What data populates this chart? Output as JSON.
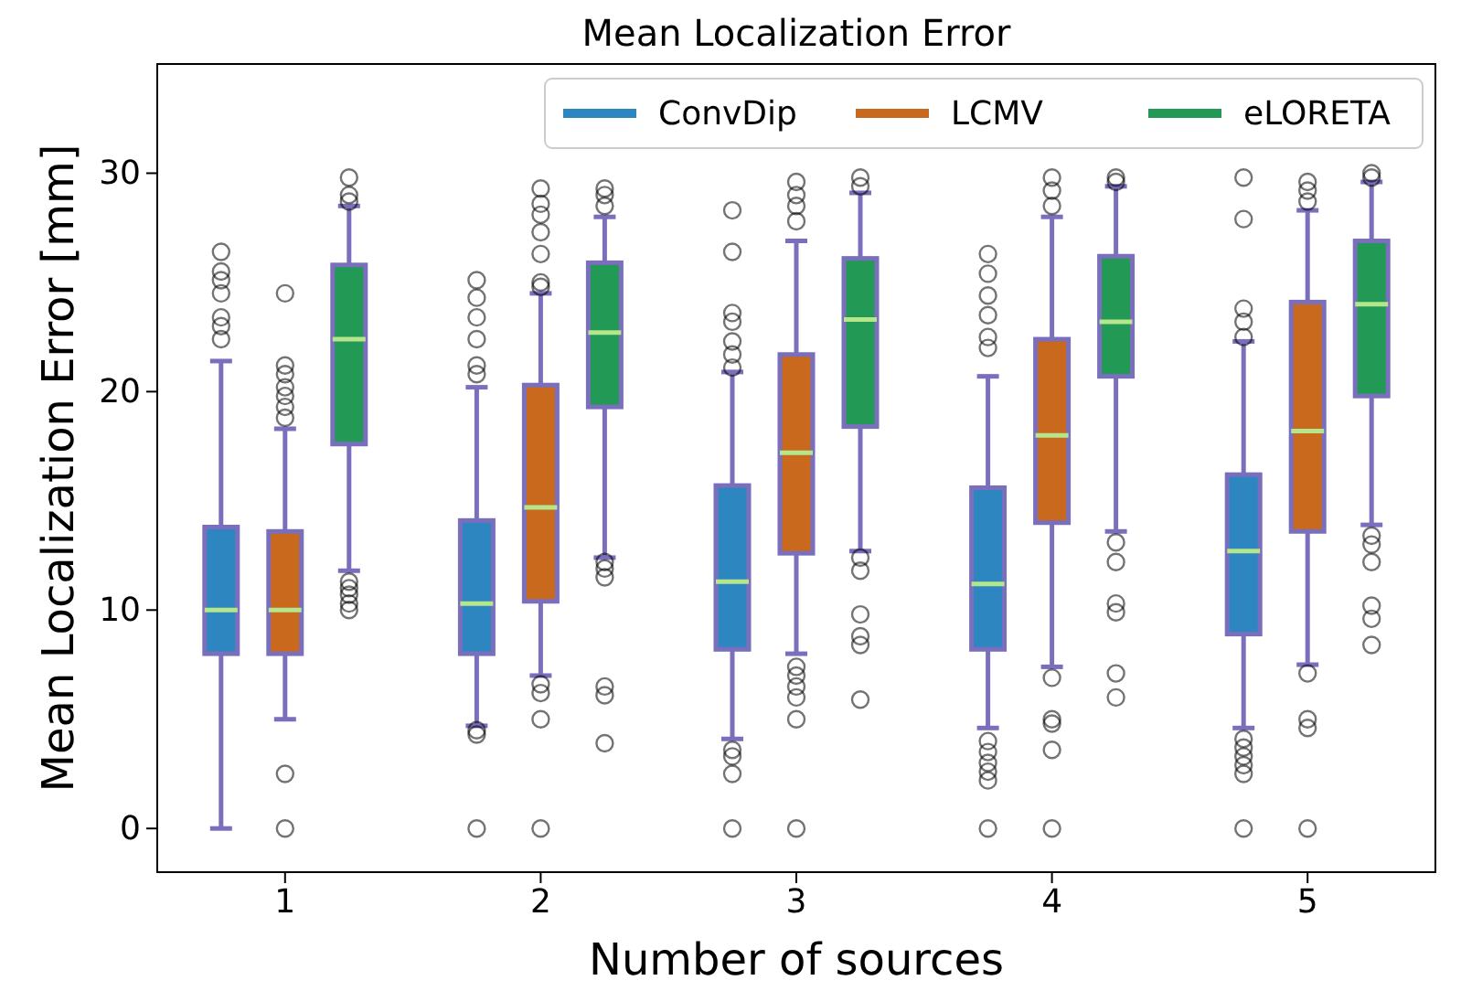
{
  "chart_data": {
    "type": "box",
    "title": "Mean Localization Error",
    "xlabel": "Number of sources",
    "ylabel": "Mean Localization Error [mm]",
    "categories": [
      "1",
      "2",
      "3",
      "4",
      "5"
    ],
    "ylim": [
      -2,
      35
    ],
    "yticks": [
      0,
      10,
      20,
      30
    ],
    "grid": false,
    "legend": "top right",
    "series": [
      {
        "name": "ConvDip",
        "color": "#2e86c1",
        "boxes": [
          {
            "low": 0,
            "q1": 8,
            "median": 10,
            "q3": 13.8,
            "high": 21.4,
            "outliers": [
              22.4,
              23,
              23.4,
              24.5,
              25.1,
              25.5,
              26.4
            ]
          },
          {
            "low": 4.7,
            "q1": 8,
            "median": 10.3,
            "q3": 14.1,
            "high": 20.2,
            "outliers": [
              0,
              4.3,
              4.5,
              20.8,
              21.2,
              22.4,
              23.4,
              24.3,
              25.1
            ]
          },
          {
            "low": 4.1,
            "q1": 8.2,
            "median": 11.3,
            "q3": 15.7,
            "high": 20.9,
            "outliers": [
              0,
              2.5,
              3.3,
              3.6,
              21.1,
              21.7,
              22.3,
              23.2,
              23.6,
              26.4,
              28.3
            ]
          },
          {
            "low": 4.6,
            "q1": 8.2,
            "median": 11.2,
            "q3": 15.6,
            "high": 20.7,
            "outliers": [
              0,
              2.2,
              2.6,
              3,
              3.5,
              4,
              22,
              22.5,
              23.5,
              24.4,
              25.4,
              26.3
            ]
          },
          {
            "low": 4.6,
            "q1": 8.9,
            "median": 12.7,
            "q3": 16.2,
            "high": 22.3,
            "outliers": [
              0,
              2.5,
              2.9,
              3.3,
              3.7,
              4.1,
              22.5,
              23.2,
              23.8,
              27.9,
              29.8
            ]
          }
        ]
      },
      {
        "name": "LCMV",
        "color": "#c9691e",
        "boxes": [
          {
            "low": 5,
            "q1": 8,
            "median": 10,
            "q3": 13.6,
            "high": 18.3,
            "outliers": [
              0,
              2.5,
              18.8,
              19.3,
              19.8,
              20.2,
              20.8,
              21.2,
              24.5
            ]
          },
          {
            "low": 7,
            "q1": 10.4,
            "median": 14.7,
            "q3": 20.3,
            "high": 24.5,
            "outliers": [
              0,
              5,
              6.2,
              6.6,
              24.8,
              25,
              26.3,
              27.3,
              28.1,
              28.6,
              29.3
            ]
          },
          {
            "low": 8,
            "q1": 12.6,
            "median": 17.2,
            "q3": 21.7,
            "high": 26.9,
            "outliers": [
              0,
              5,
              6,
              6.5,
              7,
              7.4,
              27.8,
              28.5,
              29,
              29.6
            ]
          },
          {
            "low": 7.4,
            "q1": 14,
            "median": 18,
            "q3": 22.4,
            "high": 28,
            "outliers": [
              0,
              3.6,
              4.8,
              5,
              6.9,
              28.5,
              29.2,
              29.8
            ]
          },
          {
            "low": 7.5,
            "q1": 13.6,
            "median": 18.2,
            "q3": 24.1,
            "high": 28.3,
            "outliers": [
              0,
              4.6,
              5,
              7.1,
              28.7,
              29.2,
              29.6
            ]
          }
        ]
      },
      {
        "name": "eLORETA",
        "color": "#229955",
        "boxes": [
          {
            "low": 11.8,
            "q1": 17.6,
            "median": 22.4,
            "q3": 25.8,
            "high": 28.5,
            "outliers": [
              10,
              10.3,
              10.7,
              11,
              11.3,
              28.7,
              29,
              29.8
            ]
          },
          {
            "low": 12.4,
            "q1": 19.3,
            "median": 22.7,
            "q3": 25.9,
            "high": 28,
            "outliers": [
              3.9,
              6.1,
              6.5,
              11.5,
              11.9,
              12.2,
              28.5,
              29,
              29.3
            ]
          },
          {
            "low": 12.7,
            "q1": 18.4,
            "median": 23.3,
            "q3": 26.1,
            "high": 29.1,
            "outliers": [
              5.9,
              8.4,
              8.8,
              9.8,
              11.8,
              12.4,
              29.4,
              29.8
            ]
          },
          {
            "low": 13.6,
            "q1": 20.7,
            "median": 23.2,
            "q3": 26.2,
            "high": 29.4,
            "outliers": [
              6,
              7.1,
              9.9,
              10.3,
              12.2,
              13.1,
              29.6,
              29.8
            ]
          },
          {
            "low": 13.9,
            "q1": 19.8,
            "median": 24,
            "q3": 26.9,
            "high": 29.6,
            "outliers": [
              8.4,
              9.6,
              10.2,
              12.2,
              13,
              13.4,
              29.8,
              30
            ]
          }
        ]
      }
    ]
  }
}
